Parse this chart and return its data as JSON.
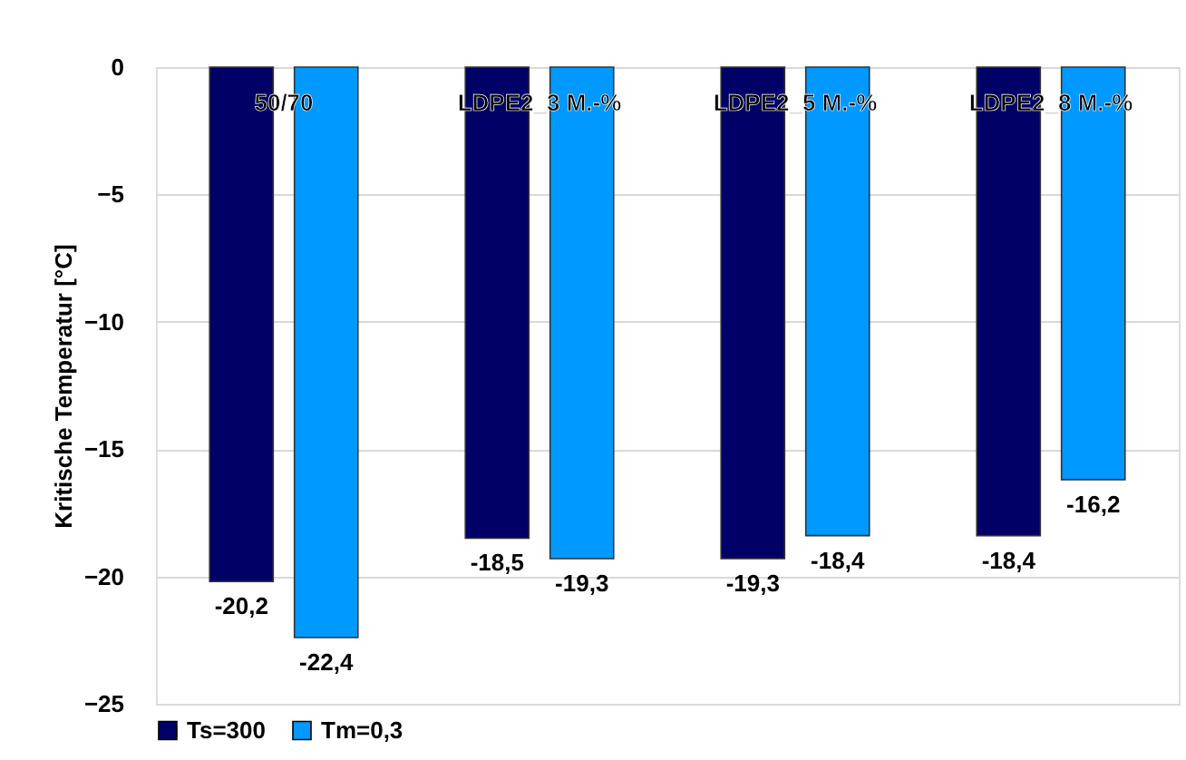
{
  "chart_data": {
    "type": "bar",
    "ylabel": "Kritische Temperatur [°C]",
    "categories": [
      "50/70",
      "LDPE2_3 M.-%",
      "LDPE2_5 M.-%",
      "LDPE2_8 M.-%"
    ],
    "series": [
      {
        "name": "Ts=300",
        "color": "#000066",
        "values": [
          -20.2,
          -18.5,
          -19.3,
          -18.4
        ],
        "value_labels": [
          "-20,2",
          "-18,5",
          "-19,3",
          "-18,4"
        ]
      },
      {
        "name": "Tm=0,3",
        "color": "#0099ff",
        "values": [
          -22.4,
          -19.3,
          -18.4,
          -16.2
        ],
        "value_labels": [
          "-22,4",
          "-19,3",
          "-18,4",
          "-16,2"
        ]
      }
    ],
    "ylim": [
      -25,
      0
    ],
    "yticks": [
      -25,
      -20,
      -15,
      -10,
      -5,
      0
    ],
    "grid": "y",
    "legend": "bottom"
  }
}
